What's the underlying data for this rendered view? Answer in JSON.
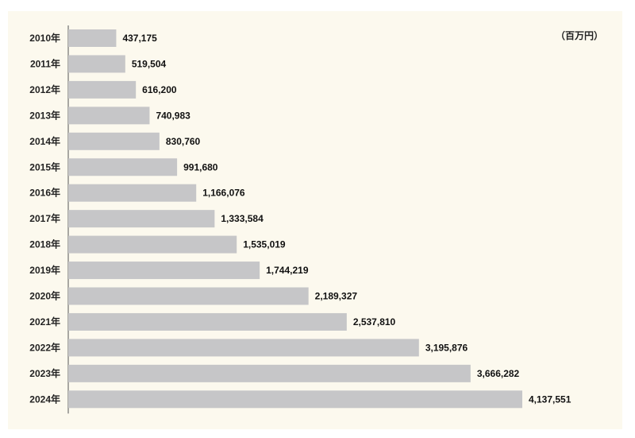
{
  "chart_data": {
    "type": "bar",
    "orientation": "horizontal",
    "unit": "（百万円）",
    "categories": [
      "2010年",
      "2011年",
      "2012年",
      "2013年",
      "2014年",
      "2015年",
      "2016年",
      "2017年",
      "2018年",
      "2019年",
      "2020年",
      "2021年",
      "2022年",
      "2023年",
      "2024年"
    ],
    "values": [
      437175,
      519504,
      616200,
      740983,
      830760,
      991680,
      1166076,
      1333584,
      1535019,
      1744219,
      2189327,
      2537810,
      3195876,
      3666282,
      4137551
    ],
    "value_labels": [
      "437,175",
      "519,504",
      "616,200",
      "740,983",
      "830,760",
      "991,680",
      "1,166,076",
      "1,333,584",
      "1,535,019",
      "1,744,219",
      "2,189,327",
      "2,537,810",
      "3,195,876",
      "3,666,282",
      "4,137,551"
    ],
    "title": "",
    "xlabel": "",
    "ylabel": "",
    "grid": false,
    "legend": "none",
    "colors": {
      "bar": "#c6c6c8",
      "axis": "#555555",
      "background": "#fcf9ee"
    }
  }
}
